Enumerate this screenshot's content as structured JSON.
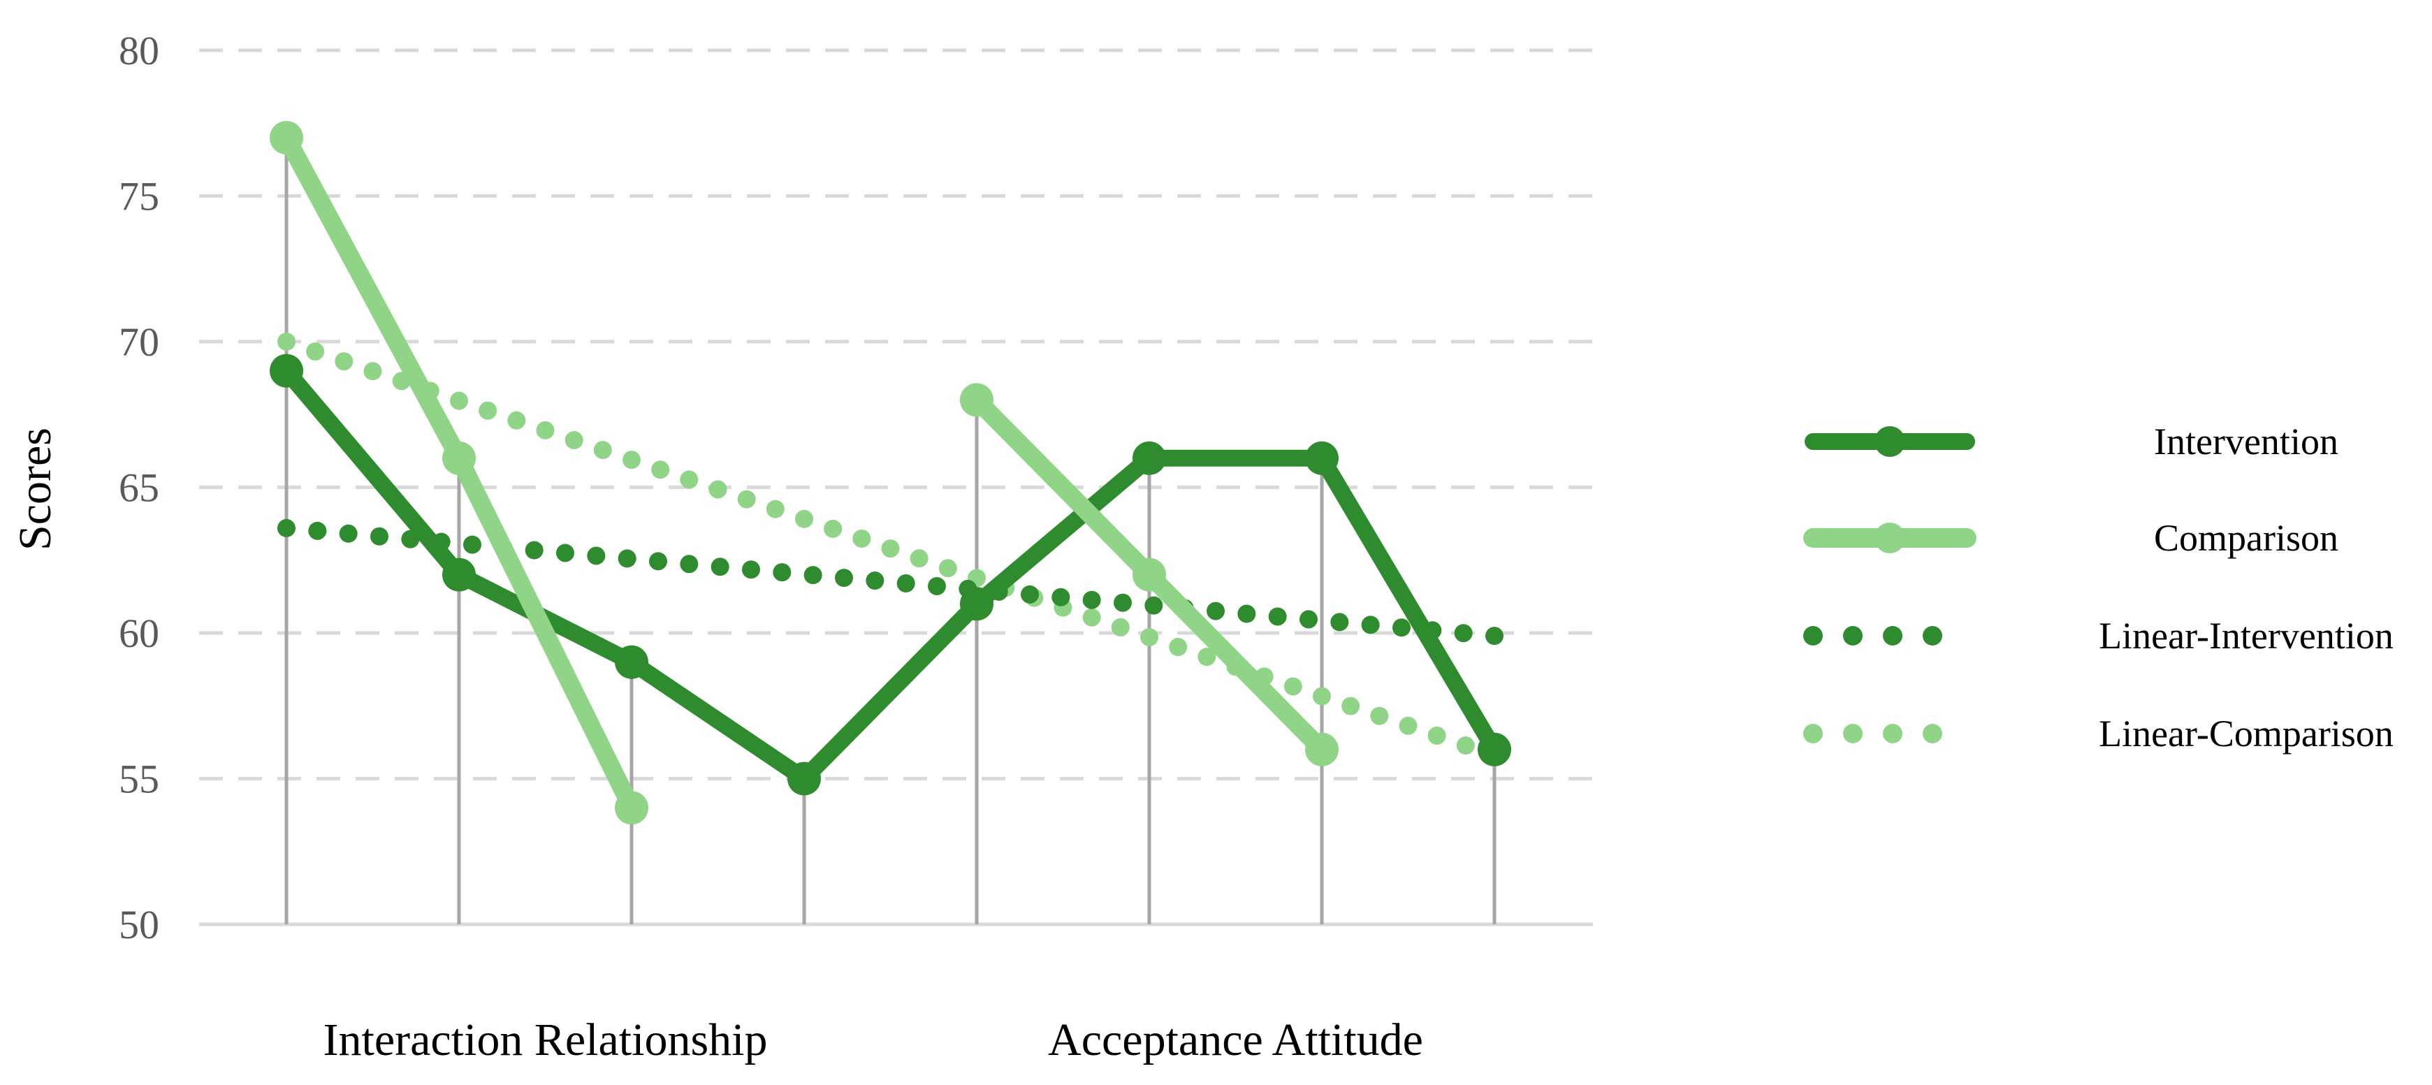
{
  "chart_data": {
    "type": "line",
    "title": "",
    "ylabel": "Scores",
    "xlabel": "",
    "ylim": [
      50,
      80
    ],
    "yticks": [
      50,
      55,
      60,
      65,
      70,
      75,
      80
    ],
    "grid": "horizontal dashed",
    "legend_position": "right",
    "x_positions": 8,
    "group_labels": [
      {
        "label": "Interaction Relationship",
        "spans": [
          0,
          3
        ]
      },
      {
        "label": "Acceptance Attitude",
        "spans": [
          4,
          7
        ]
      }
    ],
    "series": [
      {
        "name": "Intervention",
        "style": "solid",
        "color": "#2e8b2e",
        "values": [
          69,
          62,
          59,
          55,
          61,
          66,
          66,
          56
        ]
      },
      {
        "name": "Comparison",
        "style": "solid",
        "color": "#90d488",
        "segments": [
          [
            0,
            1,
            2
          ],
          [
            4,
            5,
            6
          ]
        ],
        "values": [
          77,
          66,
          54,
          null,
          68,
          62,
          56,
          null
        ]
      },
      {
        "name": "Linear-Intervention",
        "style": "dotted",
        "color": "#2e8b2e",
        "start": [
          0,
          63.6
        ],
        "end": [
          7,
          59.9
        ]
      },
      {
        "name": "Linear-Comparison",
        "style": "dotted",
        "color": "#90d488",
        "start": [
          0,
          70.0
        ],
        "end": [
          7,
          55.8
        ]
      }
    ],
    "drop_lines": [
      77,
      66,
      59,
      55,
      68,
      66,
      66,
      56
    ],
    "colors": {
      "dark_green": "#2e8b2e",
      "light_green": "#90d488",
      "grid": "#d9d9d9",
      "drop_line": "#a6a6a6"
    }
  }
}
